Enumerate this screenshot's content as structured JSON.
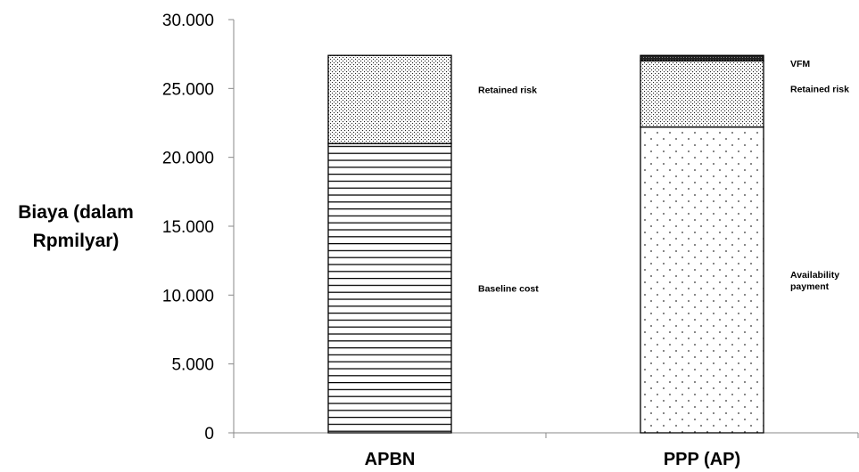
{
  "chart_data": {
    "type": "bar",
    "stacked": true,
    "title": "",
    "ylabel_lines": [
      "Biaya (dalam",
      "Rpmilyar)"
    ],
    "xlabel": "",
    "ylim": [
      0,
      30000
    ],
    "yticks": [
      0,
      5000,
      10000,
      15000,
      20000,
      25000,
      30000
    ],
    "ytick_labels": [
      "0",
      "5.000",
      "10.000",
      "15.000",
      "20.000",
      "25.000",
      "30.000"
    ],
    "categories": [
      "APBN",
      "PPP (AP)"
    ],
    "grid": false,
    "legend": "none",
    "bars": [
      {
        "category": "APBN",
        "segments": [
          {
            "label_lines": [
              "Baseline cost"
            ],
            "value": 21000,
            "pattern": "horizontal-lines"
          },
          {
            "label_lines": [
              "Retained risk"
            ],
            "value": 6400,
            "pattern": "dense-dots"
          }
        ]
      },
      {
        "category": "PPP (AP)",
        "segments": [
          {
            "label_lines": [
              "Availability",
              "payment"
            ],
            "value": 22200,
            "pattern": "sparse-dots"
          },
          {
            "label_lines": [
              "Retained risk"
            ],
            "value": 4800,
            "pattern": "dense-dots"
          },
          {
            "label_lines": [
              "VFM"
            ],
            "value": 400,
            "pattern": "solid-dark"
          }
        ]
      }
    ]
  }
}
